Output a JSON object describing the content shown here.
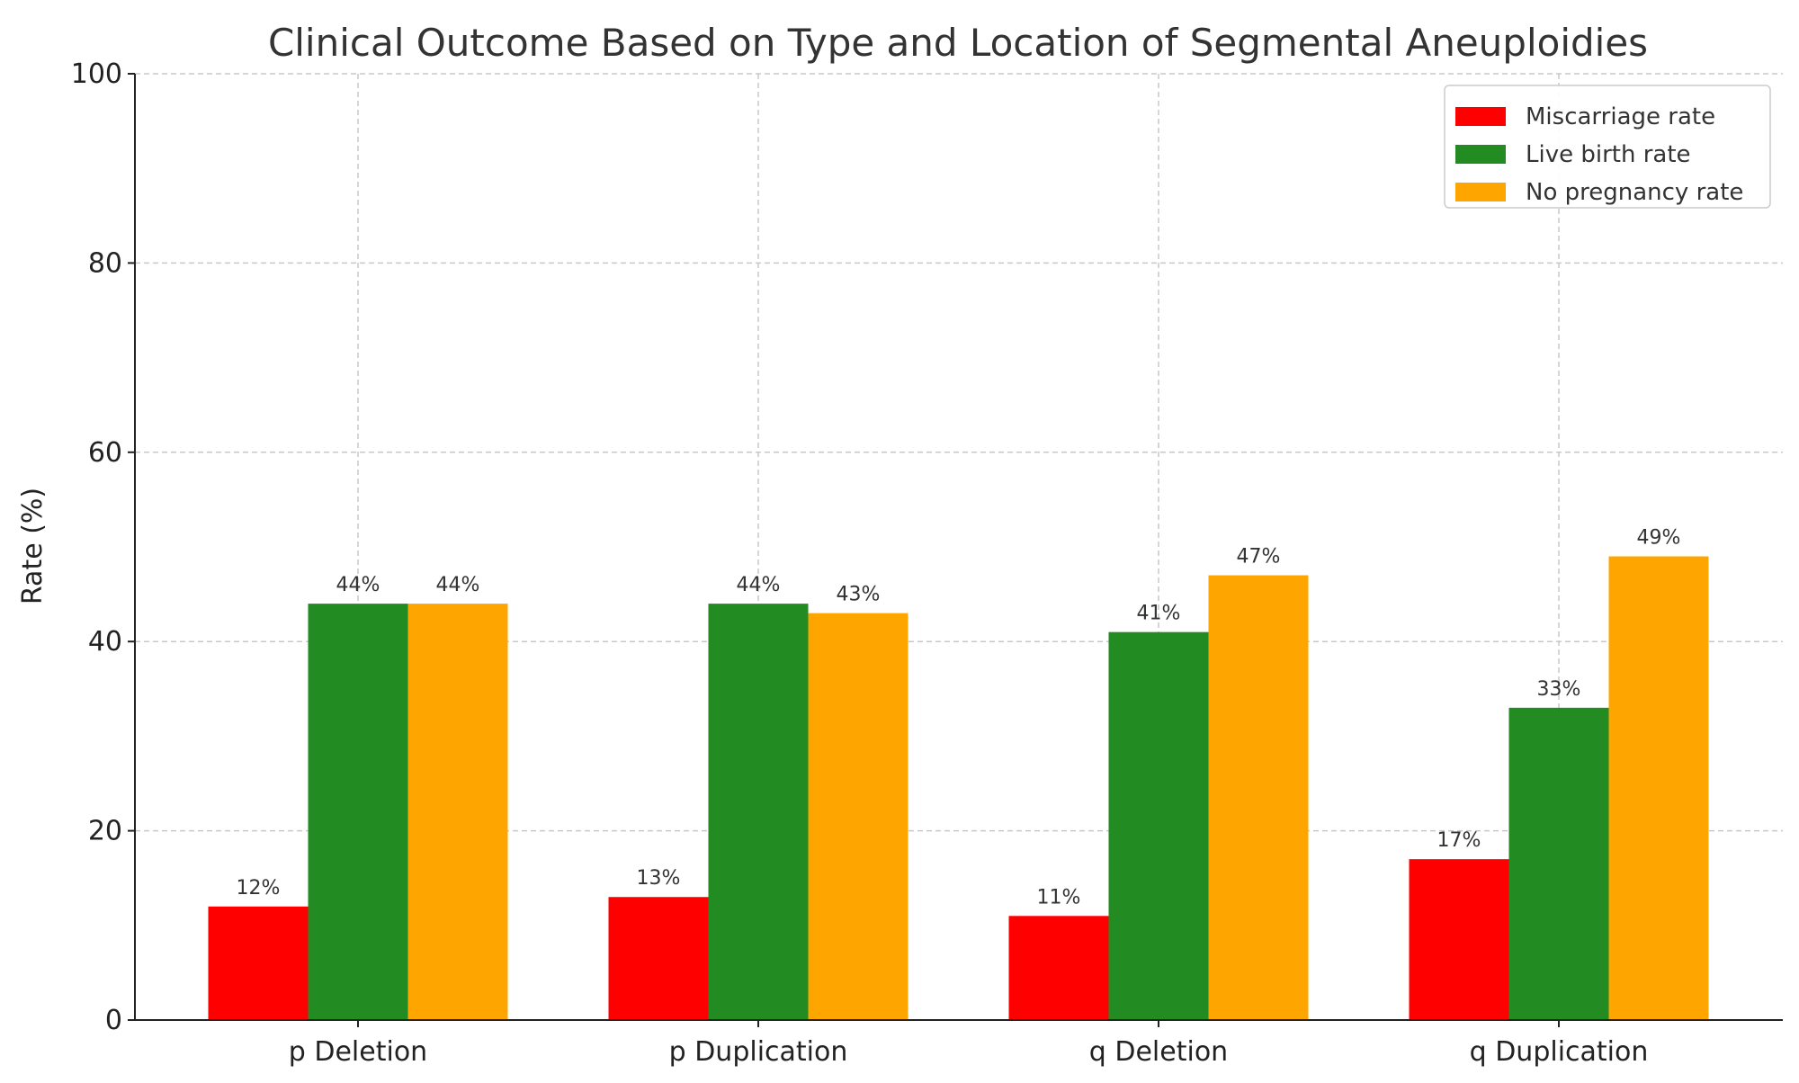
{
  "chart_data": {
    "type": "bar",
    "title": "Clinical Outcome Based on Type and Location of Segmental Aneuploidies",
    "xlabel": "",
    "ylabel": "Rate (%)",
    "ylim": [
      0,
      100
    ],
    "yticks": [
      0,
      20,
      40,
      60,
      80,
      100
    ],
    "grid": true,
    "legend_position": "top-right",
    "categories": [
      "p Deletion",
      "p Duplication",
      "q Deletion",
      "q Duplication"
    ],
    "series": [
      {
        "name": "Miscarriage rate",
        "color": "#ff0000",
        "values": [
          12,
          13,
          11,
          17
        ],
        "labels": [
          "12%",
          "13%",
          "11%",
          "17%"
        ]
      },
      {
        "name": "Live birth rate",
        "color": "#228b22",
        "values": [
          44,
          44,
          41,
          33
        ],
        "labels": [
          "44%",
          "44%",
          "41%",
          "33%"
        ]
      },
      {
        "name": "No pregnancy rate",
        "color": "#ffa500",
        "values": [
          44,
          43,
          47,
          49
        ],
        "labels": [
          "44%",
          "43%",
          "47%",
          "49%"
        ]
      }
    ]
  }
}
